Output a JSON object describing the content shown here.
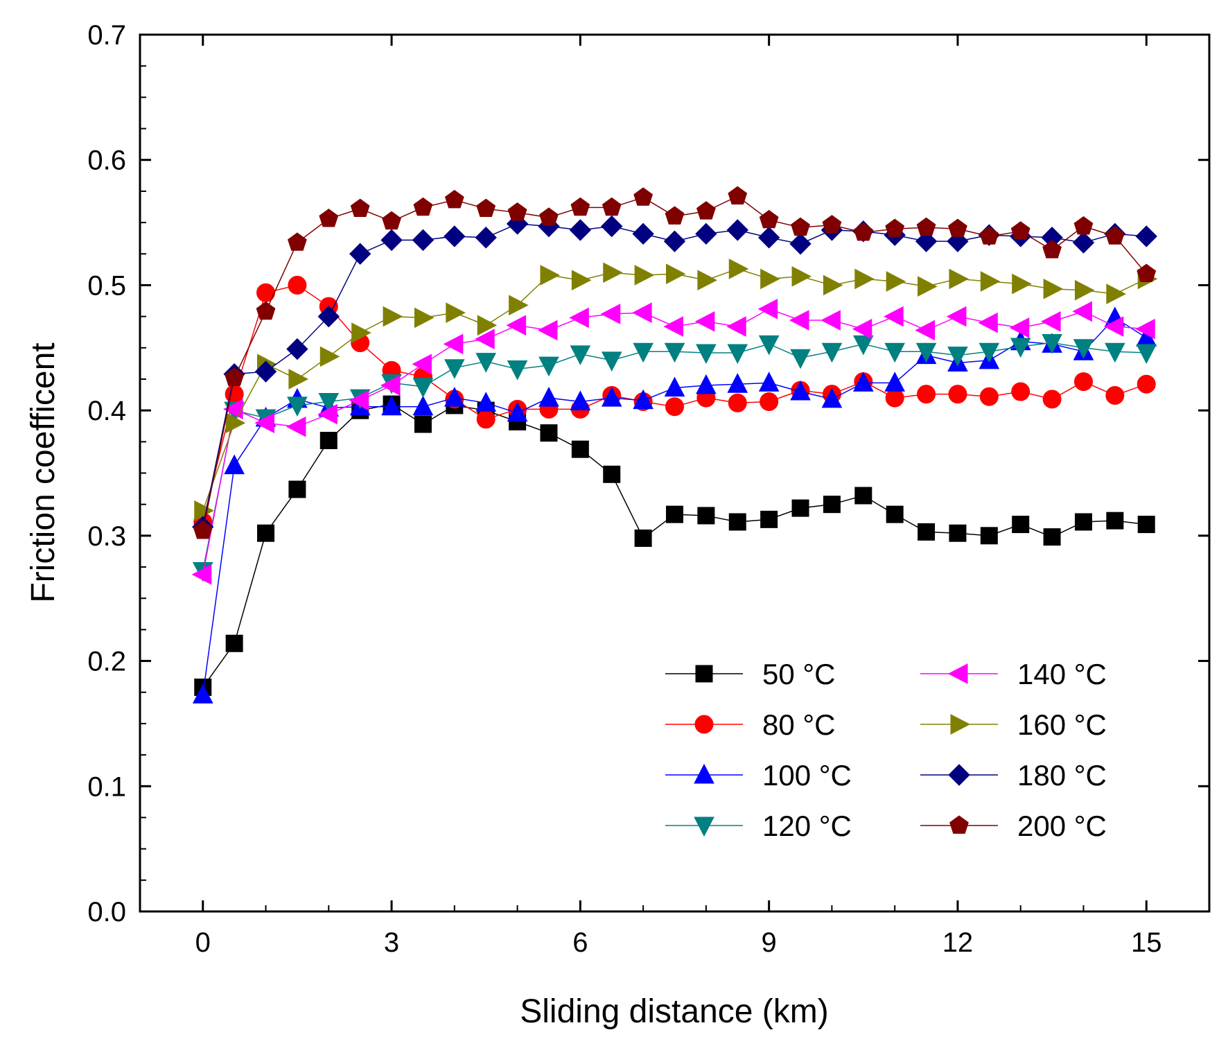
{
  "chart_data": {
    "type": "line",
    "title": "",
    "xlabel": "Sliding distance (km)",
    "ylabel": "Friction coefficent",
    "xlim": [
      -1,
      16
    ],
    "ylim": [
      0,
      0.7
    ],
    "xticks": [
      "0",
      "3",
      "6",
      "9",
      "12",
      "15"
    ],
    "yticks": [
      "0.0",
      "0.1",
      "0.2",
      "0.3",
      "0.4",
      "0.5",
      "0.6",
      "0.7"
    ],
    "legend_position": "lower-right",
    "x": [
      0,
      0.5,
      1,
      1.5,
      2,
      2.5,
      3,
      3.5,
      4,
      4.5,
      5,
      5.5,
      6,
      6.5,
      7,
      7.5,
      8,
      8.5,
      9,
      9.5,
      10,
      10.5,
      11,
      11.5,
      12,
      12.5,
      13,
      13.5,
      14,
      14.5,
      15
    ],
    "series": [
      {
        "name": "50 °C",
        "color": "#000000",
        "marker": "square",
        "values": [
          0.179,
          0.214,
          0.302,
          0.337,
          0.376,
          0.4,
          0.405,
          0.389,
          0.404,
          0.4,
          0.391,
          0.382,
          0.369,
          0.349,
          0.298,
          0.317,
          0.316,
          0.311,
          0.313,
          0.322,
          0.325,
          0.332,
          0.317,
          0.303,
          0.302,
          0.3,
          0.309,
          0.299,
          0.311,
          0.312,
          0.309
        ]
      },
      {
        "name": "80 °C",
        "color": "#ff0000",
        "marker": "circle",
        "values": [
          0.311,
          0.413,
          0.494,
          0.5,
          0.483,
          0.454,
          0.432,
          0.427,
          0.409,
          0.393,
          0.401,
          0.401,
          0.401,
          0.412,
          0.407,
          0.403,
          0.41,
          0.406,
          0.407,
          0.416,
          0.413,
          0.423,
          0.41,
          0.413,
          0.413,
          0.411,
          0.415,
          0.409,
          0.423,
          0.412,
          0.421
        ]
      },
      {
        "name": "100 °C",
        "color": "#0000ff",
        "marker": "triangle-up",
        "values": [
          0.173,
          0.356,
          0.394,
          0.409,
          0.402,
          0.403,
          0.403,
          0.403,
          0.41,
          0.406,
          0.398,
          0.41,
          0.407,
          0.41,
          0.408,
          0.418,
          0.42,
          0.421,
          0.422,
          0.415,
          0.409,
          0.422,
          0.422,
          0.444,
          0.438,
          0.44,
          0.455,
          0.453,
          0.447,
          0.474,
          0.458
        ]
      },
      {
        "name": "120 °C",
        "color": "#008080",
        "marker": "triangle-down",
        "values": [
          0.272,
          0.4,
          0.394,
          0.404,
          0.407,
          0.41,
          0.422,
          0.419,
          0.434,
          0.439,
          0.433,
          0.436,
          0.445,
          0.44,
          0.447,
          0.447,
          0.446,
          0.446,
          0.453,
          0.442,
          0.447,
          0.453,
          0.447,
          0.447,
          0.444,
          0.447,
          0.451,
          0.454,
          0.45,
          0.447,
          0.446
        ]
      },
      {
        "name": "140 °C",
        "color": "#ff00ff",
        "marker": "triangle-left",
        "values": [
          0.269,
          0.401,
          0.39,
          0.387,
          0.397,
          0.408,
          0.42,
          0.437,
          0.453,
          0.457,
          0.468,
          0.464,
          0.474,
          0.477,
          0.478,
          0.467,
          0.471,
          0.467,
          0.481,
          0.472,
          0.472,
          0.465,
          0.475,
          0.464,
          0.475,
          0.47,
          0.466,
          0.471,
          0.479,
          0.467,
          0.465
        ]
      },
      {
        "name": "160 °C",
        "color": "#808000",
        "marker": "triangle-right",
        "values": [
          0.32,
          0.39,
          0.437,
          0.425,
          0.443,
          0.462,
          0.475,
          0.474,
          0.478,
          0.468,
          0.484,
          0.508,
          0.504,
          0.51,
          0.508,
          0.509,
          0.504,
          0.513,
          0.505,
          0.507,
          0.5,
          0.505,
          0.503,
          0.499,
          0.505,
          0.503,
          0.501,
          0.497,
          0.496,
          0.493,
          0.505
        ]
      },
      {
        "name": "180 °C",
        "color": "#000080",
        "marker": "diamond",
        "values": [
          0.307,
          0.429,
          0.431,
          0.449,
          0.475,
          0.525,
          0.536,
          0.536,
          0.539,
          0.538,
          0.549,
          0.547,
          0.544,
          0.547,
          0.541,
          0.535,
          0.541,
          0.544,
          0.538,
          0.533,
          0.544,
          0.543,
          0.54,
          0.535,
          0.535,
          0.54,
          0.539,
          0.538,
          0.534,
          0.541,
          0.539
        ]
      },
      {
        "name": "200 °C",
        "color": "#800000",
        "marker": "pentagon",
        "values": [
          0.304,
          0.426,
          0.479,
          0.534,
          0.553,
          0.561,
          0.551,
          0.562,
          0.568,
          0.561,
          0.558,
          0.554,
          0.562,
          0.562,
          0.57,
          0.555,
          0.559,
          0.571,
          0.552,
          0.546,
          0.548,
          0.542,
          0.545,
          0.546,
          0.545,
          0.539,
          0.543,
          0.528,
          0.547,
          0.539,
          0.509
        ]
      }
    ]
  }
}
